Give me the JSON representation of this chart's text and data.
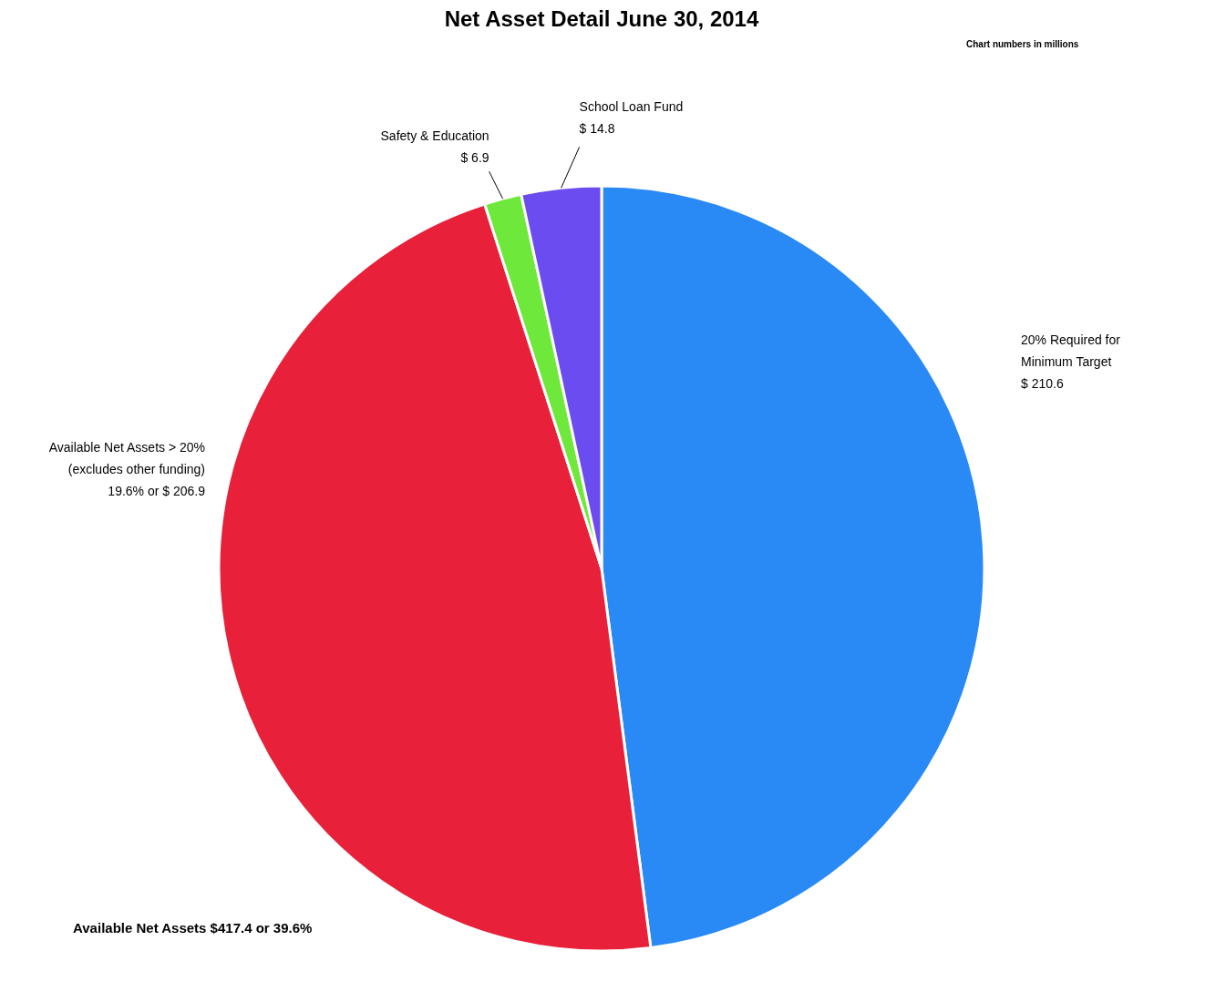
{
  "chart_data": {
    "type": "pie",
    "title": "Net Asset Detail  June 30, 2014",
    "categories": [
      "20% Required for\nMinimum Target",
      "Available Net Assets > 20%\n(excludes other  funding)",
      "Safety & Education",
      "School Loan Fund"
    ],
    "values": [
      210.6,
      206.9,
      6.9,
      14.8
    ],
    "value_labels": [
      "$ 210.6",
      "19.6%  or $ 206.9",
      "$ 6.9",
      "$ 14.8"
    ],
    "colors": [
      "#2a8af5",
      "#e8203a",
      "#6ee83a",
      "#6a4cf0"
    ],
    "annotations": [
      "Chart numbers in millions",
      "Available Net Assets  $417.4 or 39.6%"
    ]
  }
}
